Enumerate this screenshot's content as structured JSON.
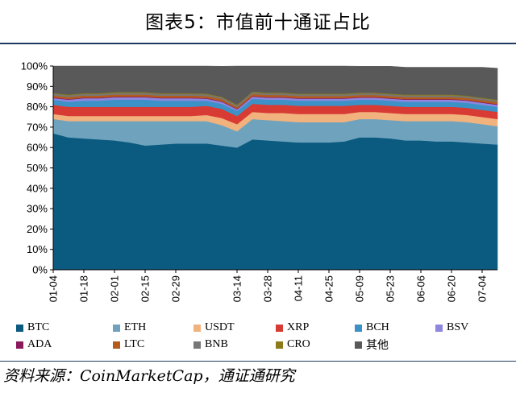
{
  "title": "图表5：市值前十通证占比",
  "source": "资料来源：CoinMarketCap，通证通研究",
  "chart_data": {
    "type": "area",
    "stacked": true,
    "y_ticks": [
      "0%",
      "10%",
      "20%",
      "30%",
      "40%",
      "50%",
      "60%",
      "70%",
      "80%",
      "90%",
      "100%"
    ],
    "ylim": [
      0,
      100
    ],
    "x_ticks": [
      "01-04",
      "01-18",
      "02-01",
      "02-15",
      "02-29",
      "03-14",
      "03-28",
      "04-11",
      "04-25",
      "05-09",
      "05-23",
      "06-06",
      "06-20",
      "07-04"
    ],
    "x": [
      "01-04",
      "01-11",
      "01-18",
      "01-25",
      "02-01",
      "02-08",
      "02-15",
      "02-22",
      "02-29",
      "03-07",
      "03-12",
      "03-13",
      "03-14",
      "03-21",
      "03-28",
      "04-04",
      "04-11",
      "04-18",
      "04-25",
      "05-02",
      "05-09",
      "05-16",
      "05-23",
      "05-30",
      "06-06",
      "06-13",
      "06-20",
      "06-27",
      "07-04",
      "07-14"
    ],
    "series": [
      {
        "name": "BTC",
        "color": "#0b5a80",
        "values": [
          67,
          65,
          64.5,
          64,
          63.5,
          62.5,
          61,
          61.5,
          62,
          62,
          62,
          61,
          60,
          64,
          63.5,
          63,
          62.5,
          62.5,
          62.5,
          63,
          65,
          65,
          64.5,
          63.5,
          63.5,
          63,
          63,
          62.5,
          62,
          61.5
        ]
      },
      {
        "name": "ETH",
        "color": "#6fa3bd",
        "values": [
          7,
          8,
          8.5,
          9,
          9.5,
          10.5,
          12,
          11.5,
          11,
          11,
          11,
          10,
          8,
          10,
          10,
          10,
          10,
          10,
          10,
          9.5,
          9,
          9,
          9,
          9.5,
          9.5,
          10,
          10,
          10,
          9.5,
          9
        ]
      },
      {
        "name": "USDT",
        "color": "#f2b27e",
        "values": [
          2.5,
          2.5,
          2.5,
          2.5,
          2.5,
          2.5,
          2.5,
          2.5,
          2.5,
          2.5,
          3,
          3.5,
          3.5,
          3.5,
          3.5,
          4,
          4,
          4,
          4,
          4,
          3.5,
          3.5,
          3.5,
          3.5,
          3.5,
          3.5,
          3.5,
          3.5,
          3.5,
          3.5
        ]
      },
      {
        "name": "XRP",
        "color": "#d83a34",
        "values": [
          4.5,
          4.5,
          4.5,
          4.5,
          4.5,
          4.5,
          4.5,
          4.5,
          4.5,
          4.5,
          4.5,
          4.5,
          4,
          4,
          4,
          4,
          4,
          4,
          4,
          4,
          3.5,
          3.5,
          3.5,
          3.5,
          3.5,
          3.5,
          3.5,
          3.5,
          3.5,
          3.5
        ]
      },
      {
        "name": "BCH",
        "color": "#3c92c7",
        "values": [
          2.5,
          2.5,
          3,
          3,
          3.5,
          3.5,
          3.5,
          3,
          3,
          3,
          2.5,
          2.5,
          2.5,
          2.5,
          2.5,
          2.5,
          2.5,
          2.5,
          2.5,
          2.5,
          2.5,
          2.5,
          2.5,
          2.5,
          2.5,
          2.5,
          2.5,
          2.5,
          2.5,
          2.5
        ]
      },
      {
        "name": "BSV",
        "color": "#8f86e0",
        "values": [
          0.8,
          1,
          1.2,
          1.2,
          1.2,
          1.2,
          1.2,
          1.2,
          1.2,
          1.2,
          1,
          1,
          0.8,
          1,
          1,
          1,
          1,
          1,
          1,
          1,
          1,
          1,
          1,
          1,
          1,
          1,
          1,
          1,
          1,
          1
        ]
      },
      {
        "name": "ADA",
        "color": "#8a1a5c",
        "values": [
          0.3,
          0.3,
          0.3,
          0.3,
          0.3,
          0.3,
          0.3,
          0.3,
          0.3,
          0.3,
          0.3,
          0.3,
          0.3,
          0.3,
          0.3,
          0.3,
          0.3,
          0.3,
          0.3,
          0.3,
          0.3,
          0.3,
          0.3,
          0.3,
          0.3,
          0.3,
          0.3,
          0.3,
          0.3,
          0.3
        ]
      },
      {
        "name": "LTC",
        "color": "#b45a1c",
        "values": [
          1,
          1,
          1,
          1,
          1,
          1,
          1,
          1,
          1,
          1,
          1,
          1,
          0.8,
          1,
          1,
          1,
          1,
          1,
          1,
          1,
          1,
          1,
          1,
          1,
          1,
          1,
          1,
          1,
          1,
          1
        ]
      },
      {
        "name": "BNB",
        "color": "#777777",
        "values": [
          0.8,
          0.8,
          0.8,
          0.8,
          0.8,
          0.8,
          0.8,
          0.8,
          0.8,
          0.8,
          0.8,
          0.8,
          0.8,
          0.8,
          0.8,
          0.8,
          0.8,
          0.8,
          0.8,
          0.8,
          0.8,
          0.8,
          0.8,
          0.8,
          0.8,
          0.8,
          0.8,
          0.8,
          0.8,
          0.8
        ]
      },
      {
        "name": "CRO",
        "color": "#8c7a1c",
        "values": [
          0.4,
          0.4,
          0.4,
          0.4,
          0.4,
          0.4,
          0.4,
          0.4,
          0.4,
          0.4,
          0.4,
          0.4,
          0.4,
          0.4,
          0.4,
          0.4,
          0.4,
          0.4,
          0.4,
          0.4,
          0.4,
          0.4,
          0.4,
          0.4,
          0.4,
          0.4,
          0.4,
          0.4,
          0.4,
          0.4
        ]
      },
      {
        "name": "其他",
        "color": "#595959",
        "values": [
          13.2,
          14,
          13.3,
          13.3,
          12.8,
          12.8,
          12.8,
          13.3,
          13.3,
          13.3,
          13.5,
          14.9,
          18.9,
          12.5,
          13,
          13,
          13.5,
          13.5,
          13.5,
          13.5,
          12.9,
          12.9,
          13.4,
          13.4,
          13.4,
          13.4,
          13.4,
          13.9,
          14.9,
          15.4
        ]
      }
    ],
    "grid": false,
    "legend_position": "bottom"
  }
}
